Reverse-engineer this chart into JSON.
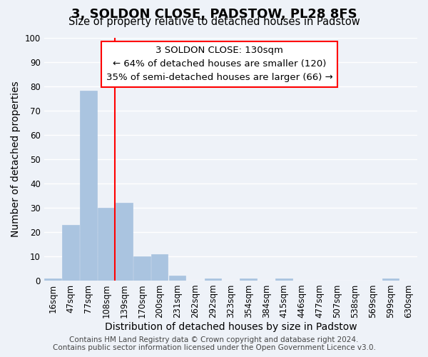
{
  "title": "3, SOLDON CLOSE, PADSTOW, PL28 8FS",
  "subtitle": "Size of property relative to detached houses in Padstow",
  "xlabel": "Distribution of detached houses by size in Padstow",
  "ylabel": "Number of detached properties",
  "bar_labels": [
    "16sqm",
    "47sqm",
    "77sqm",
    "108sqm",
    "139sqm",
    "170sqm",
    "200sqm",
    "231sqm",
    "262sqm",
    "292sqm",
    "323sqm",
    "354sqm",
    "384sqm",
    "415sqm",
    "446sqm",
    "477sqm",
    "507sqm",
    "538sqm",
    "569sqm",
    "599sqm",
    "630sqm"
  ],
  "bar_heights": [
    1,
    23,
    78,
    30,
    32,
    10,
    11,
    2,
    0,
    1,
    0,
    1,
    0,
    1,
    0,
    0,
    0,
    0,
    0,
    1,
    0
  ],
  "bar_color": "#aac4e0",
  "vline_x": 3.5,
  "vline_color": "red",
  "annotation_lines": [
    "3 SOLDON CLOSE: 130sqm",
    "← 64% of detached houses are smaller (120)",
    "35% of semi-detached houses are larger (66) →"
  ],
  "ylim": [
    0,
    100
  ],
  "footer_lines": [
    "Contains HM Land Registry data © Crown copyright and database right 2024.",
    "Contains public sector information licensed under the Open Government Licence v3.0."
  ],
  "background_color": "#eef2f8",
  "plot_background": "#eef2f8",
  "grid_color": "white",
  "title_fontsize": 13,
  "subtitle_fontsize": 10.5,
  "axis_label_fontsize": 10,
  "tick_fontsize": 8.5,
  "annotation_fontsize": 9.5,
  "footer_fontsize": 7.5
}
